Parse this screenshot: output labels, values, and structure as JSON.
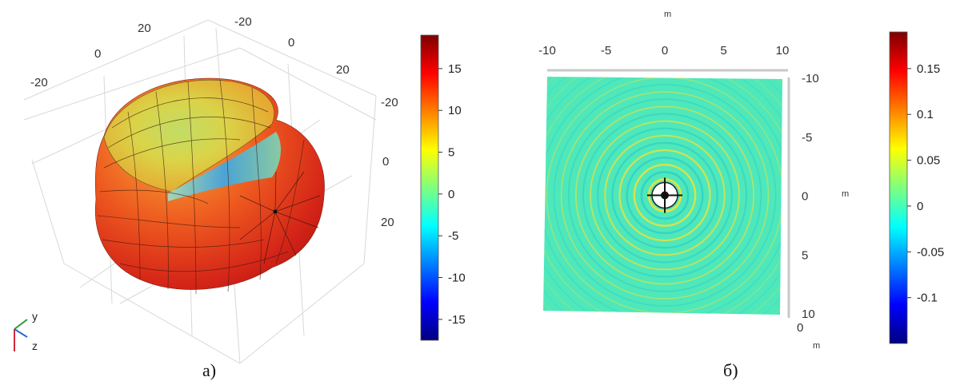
{
  "chart_data": [
    {
      "type": "surface-3d",
      "panel_caption": "а)",
      "axes_ticks": {
        "axis_a": [
          "-20",
          "0",
          "20"
        ],
        "axis_b": [
          "-20",
          "0",
          "20"
        ],
        "axis_c": [
          "-20",
          "0",
          "20"
        ]
      },
      "triad_labels": [
        "y",
        "z"
      ],
      "colorbar": {
        "colormap": "jet",
        "range": [
          -17.5,
          19
        ],
        "ticks": [
          15,
          10,
          5,
          0,
          -5,
          -10,
          -15
        ],
        "tick_labels": [
          "15",
          "10",
          "5",
          "0",
          "-5",
          "-10",
          "-15"
        ]
      }
    },
    {
      "type": "heatmap",
      "panel_caption": "б)",
      "x_unit": "m",
      "y_unit": "m",
      "xlim": [
        -10,
        10
      ],
      "ylim": [
        -10,
        10
      ],
      "x_ticks": [
        -10,
        -5,
        0,
        5,
        10
      ],
      "x_tick_labels": [
        "-10",
        "-5",
        "0",
        "5",
        "10"
      ],
      "y_ticks": [
        -10,
        -5,
        0,
        5,
        10
      ],
      "y_tick_labels": [
        "-10",
        "-5",
        "0",
        "5",
        "10"
      ],
      "corner_label": "0",
      "source_position": [
        0,
        0
      ],
      "ring_spacing": 0.62,
      "colorbar": {
        "colormap": "jet",
        "range": [
          -0.15,
          0.19
        ],
        "ticks": [
          0.15,
          0.1,
          0.05,
          0,
          -0.05,
          -0.1
        ],
        "tick_labels": [
          "0.15",
          "0.1",
          "0.05",
          "0",
          "-0.05",
          "-0.1"
        ]
      }
    }
  ]
}
